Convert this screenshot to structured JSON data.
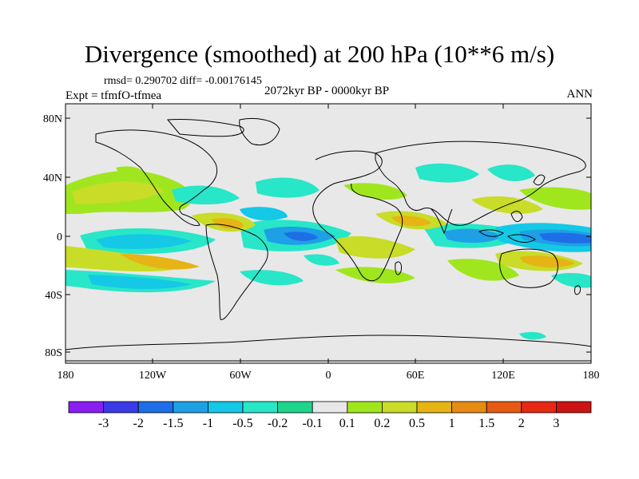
{
  "title": "Divergence (smoothed) at 200 hPa (10**6 m/s)",
  "stats_line": "rmsd= 0.290702 diff= -0.00176145",
  "experiment": "Expt = tfmfO-tfmea",
  "period": "2072kyr BP - 0000kyr BP",
  "season": "ANN",
  "axes": {
    "lat_ticks": [
      "80N",
      "40N",
      "0",
      "40S",
      "80S"
    ],
    "lon_ticks": [
      "180",
      "120W",
      "60W",
      "0",
      "60E",
      "120E",
      "180"
    ]
  },
  "colorbar": {
    "labels": [
      "-3",
      "-2",
      "-1.5",
      "-1",
      "-0.5",
      "-0.2",
      "-0.1",
      "0.1",
      "0.2",
      "0.5",
      "1",
      "1.5",
      "2",
      "3"
    ],
    "colors": [
      "#8a1ef0",
      "#3a3ae6",
      "#1e6ee6",
      "#1ea0e6",
      "#14c8e6",
      "#28e6c8",
      "#1ed48c",
      "#e8e8e8",
      "#a0e61e",
      "#c8dc28",
      "#e6b414",
      "#e68c14",
      "#e65a14",
      "#e62814",
      "#cc1414"
    ]
  },
  "colors": {
    "background": "#e8e8e8",
    "coast": "#000000",
    "frame": "#000000"
  }
}
